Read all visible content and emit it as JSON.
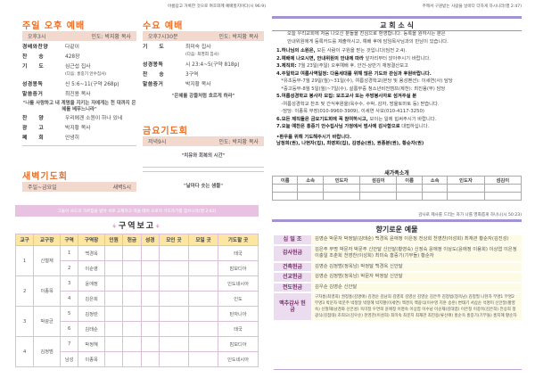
{
  "left": {
    "motto": "아름답고 거룩한 것으로 여호와께 예배할지어다(시 96:9)",
    "sunday": {
      "title": "주일 오후 예배",
      "time": "오후3시",
      "leader": "인도: 박지황 목사",
      "rows": [
        {
          "label": "경배와찬양",
          "value": "다같이"
        },
        {
          "label": "찬　　송",
          "value": "428장"
        },
        {
          "label": "기　　도",
          "value": "심근섭 집사",
          "sub": "(다음: 홍중기 안수집사)"
        },
        {
          "label": "성경봉독",
          "value": "신 5:6~11(구약 268p)"
        },
        {
          "label": "말씀증거",
          "value": "최진용 목사"
        }
      ],
      "quote": "\"나를 사랑하고 내 계명을 지키는 자에게는 천 대까지 은혜를 베푸느니라\"",
      "rows2": [
        {
          "label": "찬　　양",
          "value": "우리에겐 소원이 하나 있네"
        },
        {
          "label": "광　　고",
          "value": "박지황 목사"
        },
        {
          "label": "폐　　회",
          "value": "안녕히"
        }
      ]
    },
    "wednesday": {
      "title": "수요 예배",
      "time": "오후7시30분",
      "leader": "인도: 박지황 목사",
      "rows": [
        {
          "label": "기　　도",
          "value": "최미숙 집사",
          "sub": "(다음: 최영희 집사)"
        },
        {
          "label": "성경봉독",
          "value": "시 23:4~5(구약 818p)"
        },
        {
          "label": "찬　　송",
          "value": "3구역"
        },
        {
          "label": "말씀증거",
          "value": "박지황 목사"
        }
      ],
      "quote": "\"은혜를 강물처럼 흐르게 하라\""
    },
    "friday": {
      "title": "금요기도회",
      "time": "저녁9시",
      "leader": "인도: 박지황 목사",
      "quote": "\"치유와 회복의 시간\""
    },
    "dawn": {
      "title": "새벽기도회",
      "days": "주일~금요일",
      "time": "새벽5시",
      "quote": "\"날마다 솟는 샘물\""
    },
    "banner": "그들이 사도의 가르침을 받아 서로 교제하고 떡을 떼며 오로지 기도하기를 힘쓰니라(행 2:42)",
    "zone": {
      "title": "구역보고",
      "headers": [
        "교구",
        "교구장",
        "구역",
        "구역장",
        "인원",
        "헌금",
        "성경",
        "모인 곳",
        "모일 곳",
        "기도할 곳"
      ],
      "groups": [
        {
          "no": "1",
          "head": "신철재",
          "rows": [
            {
              "z": "1",
              "leader": "백경옥",
              "pray": "태국"
            },
            {
              "z": "2",
              "leader": "이순영",
              "pray": "캄보디아"
            }
          ]
        },
        {
          "no": "2",
          "head": "이종목",
          "rows": [
            {
              "z": "3",
              "leader": "윤애정",
              "pray": "인도네시아"
            },
            {
              "z": "4",
              "leader": "김은희",
              "pray": "인도"
            }
          ]
        },
        {
          "no": "3",
          "head": "박광균",
          "rows": [
            {
              "z": "5",
              "leader": "김정란",
              "pray": "탄자니아"
            },
            {
              "z": "6",
              "leader": "김태순",
              "pray": "태국"
            }
          ]
        },
        {
          "no": "4",
          "head": "김정범",
          "rows": [
            {
              "z": "7",
              "leader": "박정혜",
              "pray": "캄보디아"
            },
            {
              "z": "남성",
              "leader": "이종목",
              "pray": "인도네시아"
            }
          ]
        }
      ]
    }
  },
  "right": {
    "motto": "주께서 구원받는 사람을 날마다 더하게 하시니라(행 2:47)",
    "news_title": "교 회 소 식",
    "intro": [
      "오늘 우리교회에 처음 나오신 분들을 진심으로 환영합니다. 등록을 원하시는 분은",
      "안내위원에게 등록카드를 제출하시고, 예배 후에 담임목사님과의 만남이 있습니다."
    ],
    "items": [
      {
        "b": "1.하나님의 소원은,",
        "t": " 모든 사람이 구원을 받는 것입니다(딤전 2:4)."
      },
      {
        "b": "2.예배에 나오시면, 안내위원의 안내에 따라",
        "t": " 앞자리부터 앉아주시기 바랍니다."
      },
      {
        "b": "3.제직회:",
        "t": " 7월 23일(주일) 오후예배 후, 안건-상반기 재정결산보고"
      },
      {
        "b": "4.주일학교 여름사역일정: 다음세대를 위해 많은 기도와 관심과 후원바랍니다.",
        "t": ""
      },
      {
        "b": "",
        "t": "　*유초등부-7월 29일(월)~31일(수), 여름성경학교(본당 및 용성펜션): 이세연(사) 담당"
      },
      {
        "b": "",
        "t": "　*중고등부-8월 5일(월)~7일(수), 살롬부중 청소년비전캠프(제천): 최진용(부) 담당"
      },
      {
        "b": "5.여름성경학교 봉사자 모집: 보조교사 또는 주방봉사자로 섬겨주실 분",
        "t": ""
      },
      {
        "b": "",
        "t": "　-여름성경학교 찬조 및 간식후원을(옥수수, 수박, 감자, 방울토마토 등) 받습니다."
      },
      {
        "b": "",
        "t": "　-담당: 이종목 부장(010-9960-3909), 이세연 사모(010-4117-3250)"
      },
      {
        "b": "6.모든 제직들은 금요기도회에 꼭 참여하시고,",
        "t": " 모이는 일에 힘써주시기 바랍니다."
      },
      {
        "b": "7.오늘 예찬은 홍중기 안수집사님 가정에서 범사에 감사함으로",
        "t": " 대접하십니다."
      }
    ],
    "prayer_title": "•환우를 위해 기도해주시기 바랍니다.",
    "prayer_names": "남정희(권), 나현자(집), 최영희(집), 김영순(권), 권종분(권), 황순자(권)",
    "newfamily": {
      "title": "새가족소개",
      "headers": [
        "이름",
        "소속",
        "인도자",
        "섬김이",
        "이름",
        "소속",
        "인도자",
        "섬김이"
      ]
    },
    "motto2": "감사로 제사를 드리는 자가 나를 영화롭게 하나니(시 50:23)",
    "offering_title": "향기로운 예물",
    "offerings": [
      {
        "label": "십 일 조",
        "names": "김영순 박문자 박정달(김태순) 백경옥 윤애정 이은정 전상희 천영찬(이성희) 최재관 황순자(김진성)"
      },
      {
        "label": "감사헌금",
        "names": "김은주 무명 박문자 박문주 신안달 신안달(황영숙) 신정숙 윤애정 이상도(윤애정 이용희) 이상엽 이은정 이충일 조춘희 천영찬(이성희) 최미숙 홍중기(기부돌) 황순자"
      },
      {
        "label": "건축헌금",
        "names": "김영순 김정범(정옥남) 박정달 백경옥 신안달"
      },
      {
        "label": "선교헌금",
        "names": "김영순 김정범(정옥남) 박문자 박정달 신안달"
      },
      {
        "label": "전도헌금",
        "names": "김우순 김영순 신안달"
      },
      {
        "label": "맥추감사 헌금",
        "names": "구자홍(최영희) 권정홍(김명애) 김경순 김남희 김영희 김영선 김영순 김은주 김정범(정옥남) 김정필 나현자 무명1 무명2 무명3 박문자 박문주 박정달 박정혜 박지황(이세연) 백경옥 백광식(이수영 지훈 승훈) 변태기 서삼순 석명미 신안달(황영숙) 신철재(남경화 신은성) 옥미정 우연희 윤애정 이명숙 이상엽 이수남 이순재(김대엽) 이은정 이종목(김은희) 전상희 정광식(김점태) 조희오(김우순) 천영찬(이성희) 최미숙 최문지 최재관 최진용(류신애) 홍순옥 홍중기(기부돌) 홍지혜 황순자"
      }
    ]
  }
}
